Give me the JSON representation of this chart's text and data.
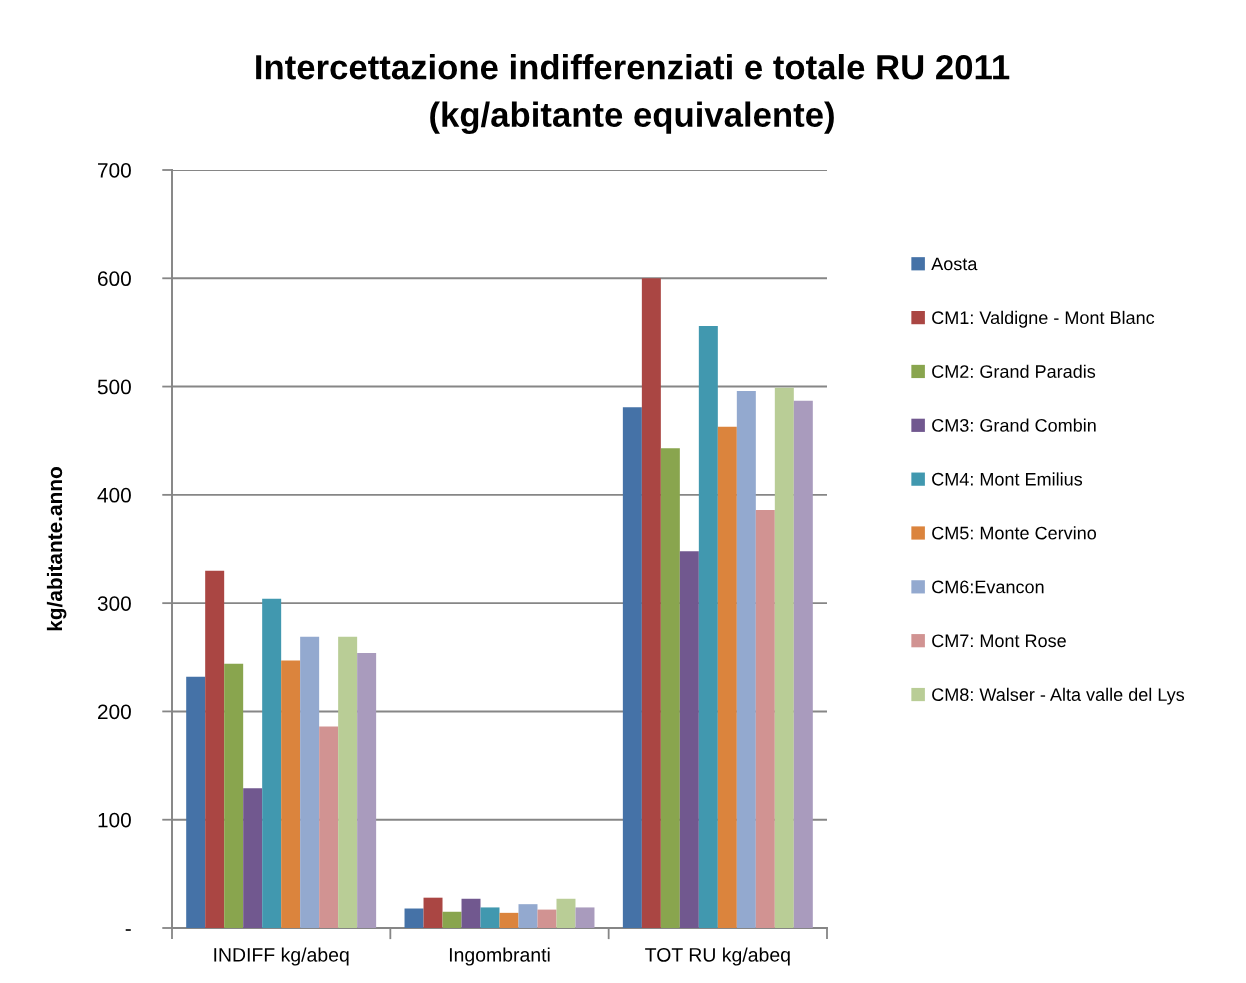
{
  "chart_data": {
    "type": "bar",
    "title": "Intercettazione indifferenziati e totale RU 2011\n(kg/abitante equivalente)",
    "ylabel": "kg/abitante.anno",
    "categories": [
      "INDIFF kg/abeq",
      "Ingombranti",
      "TOT RU kg/abeq"
    ],
    "series": [
      {
        "name": "Aosta",
        "color": "#4572a7",
        "values": [
          232,
          18,
          481
        ]
      },
      {
        "name": "CM1: Valdigne - Mont Blanc",
        "color": "#aa4643",
        "values": [
          330,
          28,
          600
        ]
      },
      {
        "name": "CM2: Grand Paradis",
        "color": "#89a54e",
        "values": [
          244,
          15,
          443
        ]
      },
      {
        "name": "CM3: Grand Combin",
        "color": "#71588f",
        "values": [
          129,
          27,
          348
        ]
      },
      {
        "name": "CM4: Mont Emilius",
        "color": "#4198af",
        "values": [
          304,
          19,
          556
        ]
      },
      {
        "name": "CM5: Monte Cervino",
        "color": "#db843d",
        "values": [
          247,
          14,
          463
        ]
      },
      {
        "name": "CM6:Evancon",
        "color": "#93a9cf",
        "values": [
          269,
          22,
          496
        ]
      },
      {
        "name": "CM7: Mont Rose",
        "color": "#d19392",
        "values": [
          186,
          17,
          386
        ]
      },
      {
        "name": "CM8: Walser - Alta valle del Lys",
        "color": "#b9cd96",
        "values": [
          269,
          27,
          499
        ]
      },
      {
        "color": "#a99bbd",
        "values": [
          254,
          19,
          487
        ]
      }
    ],
    "ylim": [
      0,
      700
    ],
    "yticks": [
      {
        "value": 0,
        "label": "-"
      },
      100,
      200,
      300,
      400,
      500,
      600,
      700
    ],
    "grid": "y",
    "legend": "right"
  }
}
